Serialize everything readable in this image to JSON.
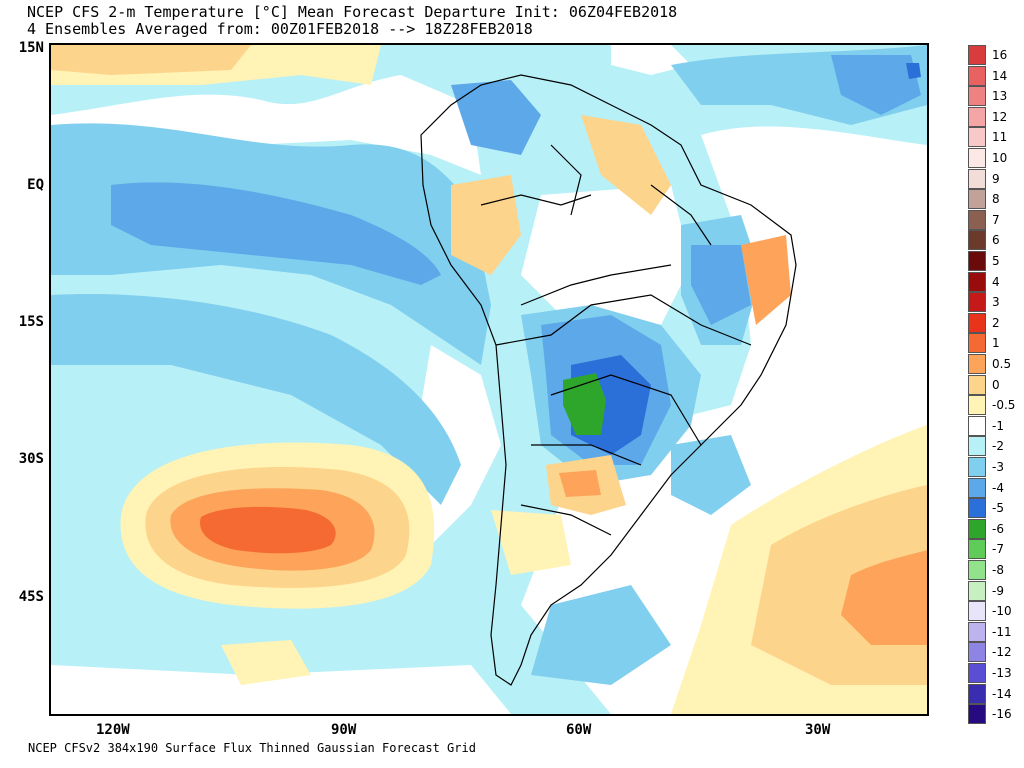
{
  "header": {
    "title_line1": "NCEP CFS 2-m Temperature [°C] Mean Forecast Departure Init: 06Z04FEB2018",
    "title_line2": "4 Ensembles Averaged from: 00Z01FEB2018 --> 18Z28FEB2018"
  },
  "footer": {
    "text": "NCEP CFSv2 384x190 Surface Flux Thinned Gaussian Forecast Grid"
  },
  "axes": {
    "lat_labels": [
      "15N",
      "EQ",
      "15S",
      "30S",
      "45S"
    ],
    "lon_labels": [
      "120W",
      "90W",
      "60W",
      "30W"
    ]
  },
  "legend": {
    "labels": [
      "16",
      "14",
      "13",
      "12",
      "11",
      "10",
      "9",
      "8",
      "7",
      "6",
      "5",
      "4",
      "3",
      "2",
      "1",
      "0.5",
      "0",
      "-0.5",
      "-1",
      "-2",
      "-3",
      "-4",
      "-5",
      "-6",
      "-7",
      "-8",
      "-9",
      "-10",
      "-11",
      "-12",
      "-13",
      "-14",
      "-16"
    ],
    "colors": [
      "#d83c3c",
      "#e86262",
      "#ee8282",
      "#f4a6a6",
      "#f9c8c8",
      "#fde8e8",
      "#f2ddd8",
      "#c2a298",
      "#8c6050",
      "#6b3a2a",
      "#6a0a0a",
      "#980c0c",
      "#c51a1a",
      "#e8341a",
      "#f56a32",
      "#fda35a",
      "#fdd48c",
      "#fff3b5",
      "#ffffff",
      "#b8f0f7",
      "#80cfee",
      "#5ca8e8",
      "#2b6fd8",
      "#2ea62c",
      "#5fcc5a",
      "#92e18b",
      "#c6f0c0",
      "#e8e4fa",
      "#bdb4ef",
      "#8e84e4",
      "#5a4fd4",
      "#3a2db0",
      "#250a80"
    ]
  },
  "palette": {
    "pos05": "#fff3b5",
    "pos1": "#fdd48c",
    "pos2": "#fda35a",
    "pos3": "#f56a32",
    "neg05": "#b8f0f7",
    "neg1": "#80cfee",
    "neg2": "#5ca8e8",
    "neg3": "#2b6fd8",
    "neg4": "#2ea62c",
    "border": "#000000"
  }
}
